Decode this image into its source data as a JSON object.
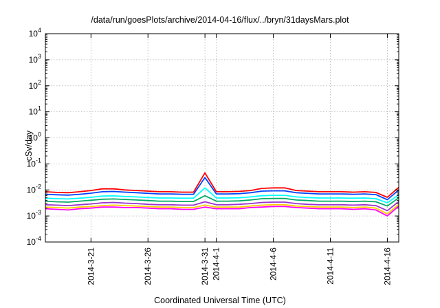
{
  "chart_data": {
    "type": "line",
    "title": "/data/run/goesPlots/archive/2014-04-16/flux/../bryn/31daysMars.plot",
    "xlabel": "Coordinated Universal Time (UTC)",
    "ylabel": "cSv/day",
    "y_scale": "log",
    "ylim": [
      0.0001,
      10000
    ],
    "xlim": [
      "2014-03-17",
      "2014-04-17"
    ],
    "y_ticks": [
      {
        "base": "10",
        "exp": "-4"
      },
      {
        "base": "10",
        "exp": "-3"
      },
      {
        "base": "10",
        "exp": "-2"
      },
      {
        "base": "10",
        "exp": "-1"
      },
      {
        "base": "10",
        "exp": "0"
      },
      {
        "base": "10",
        "exp": "1"
      },
      {
        "base": "10",
        "exp": "2"
      },
      {
        "base": "10",
        "exp": "3"
      },
      {
        "base": "10",
        "exp": "4"
      }
    ],
    "x_ticks": [
      {
        "date": "2014-03-21",
        "label": "2014-3-21"
      },
      {
        "date": "2014-03-26",
        "label": "2014-3-26"
      },
      {
        "date": "2014-03-31",
        "label": "2014-3-31"
      },
      {
        "date": "2014-04-01",
        "label": "2014-4-1"
      },
      {
        "date": "2014-04-06",
        "label": "2014-4-6"
      },
      {
        "date": "2014-04-11",
        "label": "2014-4-11"
      },
      {
        "date": "2014-04-16",
        "label": "2014-4-16"
      }
    ],
    "grid": true,
    "legend": "none",
    "x": [
      "2014-03-17",
      "2014-03-18",
      "2014-03-19",
      "2014-03-20",
      "2014-03-21",
      "2014-03-22",
      "2014-03-23",
      "2014-03-24",
      "2014-03-25",
      "2014-03-26",
      "2014-03-27",
      "2014-03-28",
      "2014-03-29",
      "2014-03-30",
      "2014-03-31",
      "2014-04-01",
      "2014-04-02",
      "2014-04-03",
      "2014-04-04",
      "2014-04-05",
      "2014-04-06",
      "2014-04-07",
      "2014-04-08",
      "2014-04-09",
      "2014-04-10",
      "2014-04-11",
      "2014-04-12",
      "2014-04-13",
      "2014-04-14",
      "2014-04-15",
      "2014-04-16",
      "2014-04-17"
    ],
    "series": [
      {
        "color": "#ff0000",
        "values": [
          0.0085,
          0.008,
          0.0078,
          0.0085,
          0.0095,
          0.011,
          0.011,
          0.01,
          0.0095,
          0.009,
          0.0085,
          0.0085,
          0.0082,
          0.0082,
          0.045,
          0.0085,
          0.0085,
          0.0088,
          0.0095,
          0.0115,
          0.012,
          0.012,
          0.0095,
          0.009,
          0.0085,
          0.0085,
          0.0085,
          0.0082,
          0.0085,
          0.008,
          0.0052,
          0.0125
        ]
      },
      {
        "color": "#0044ff",
        "values": [
          0.0068,
          0.0065,
          0.0063,
          0.0068,
          0.0075,
          0.0085,
          0.0087,
          0.0082,
          0.0078,
          0.0074,
          0.007,
          0.007,
          0.0068,
          0.0068,
          0.03,
          0.007,
          0.007,
          0.0072,
          0.0078,
          0.009,
          0.0092,
          0.0092,
          0.0078,
          0.0074,
          0.007,
          0.007,
          0.007,
          0.0068,
          0.007,
          0.0066,
          0.0042,
          0.01
        ]
      },
      {
        "color": "#00ffff",
        "values": [
          0.0048,
          0.0046,
          0.0045,
          0.0048,
          0.0052,
          0.0058,
          0.0059,
          0.0056,
          0.0054,
          0.0051,
          0.0049,
          0.0049,
          0.0048,
          0.0048,
          0.012,
          0.0049,
          0.0049,
          0.005,
          0.0054,
          0.006,
          0.0062,
          0.0062,
          0.0054,
          0.0051,
          0.0049,
          0.0049,
          0.0049,
          0.0048,
          0.0049,
          0.0046,
          0.0032,
          0.0065
        ]
      },
      {
        "color": "#00aa66",
        "values": [
          0.0037,
          0.0035,
          0.0034,
          0.0037,
          0.004,
          0.0044,
          0.0045,
          0.0043,
          0.0041,
          0.0039,
          0.0037,
          0.0037,
          0.0036,
          0.0036,
          0.006,
          0.0037,
          0.0037,
          0.0038,
          0.0041,
          0.0046,
          0.0047,
          0.0047,
          0.0041,
          0.0039,
          0.0037,
          0.0037,
          0.0037,
          0.0036,
          0.0037,
          0.0035,
          0.0024,
          0.005
        ]
      },
      {
        "color": "#9933cc",
        "values": [
          0.0027,
          0.0026,
          0.0025,
          0.0027,
          0.0029,
          0.0032,
          0.0033,
          0.0031,
          0.003,
          0.0028,
          0.0027,
          0.0027,
          0.0026,
          0.0026,
          0.0035,
          0.0027,
          0.0027,
          0.0028,
          0.003,
          0.0033,
          0.0034,
          0.0034,
          0.003,
          0.0028,
          0.0027,
          0.0027,
          0.0027,
          0.0026,
          0.0027,
          0.0025,
          0.0016,
          0.0036
        ]
      },
      {
        "color": "#ffcc00",
        "values": [
          0.0022,
          0.0021,
          0.002,
          0.0022,
          0.0023,
          0.0025,
          0.0026,
          0.0025,
          0.0024,
          0.0023,
          0.0022,
          0.0022,
          0.0021,
          0.0021,
          0.0026,
          0.0022,
          0.0022,
          0.0022,
          0.0024,
          0.0026,
          0.0027,
          0.0027,
          0.0024,
          0.0023,
          0.0022,
          0.0022,
          0.0022,
          0.0021,
          0.0022,
          0.002,
          0.0012,
          0.0028
        ]
      },
      {
        "color": "#ff00ff",
        "values": [
          0.0019,
          0.0018,
          0.0017,
          0.0019,
          0.002,
          0.0022,
          0.0022,
          0.0021,
          0.0021,
          0.002,
          0.0019,
          0.0019,
          0.0018,
          0.0018,
          0.0022,
          0.0019,
          0.0019,
          0.0019,
          0.0021,
          0.0022,
          0.0023,
          0.0023,
          0.0021,
          0.002,
          0.0019,
          0.0019,
          0.0019,
          0.0018,
          0.0019,
          0.0017,
          0.001,
          0.0024
        ]
      }
    ]
  }
}
